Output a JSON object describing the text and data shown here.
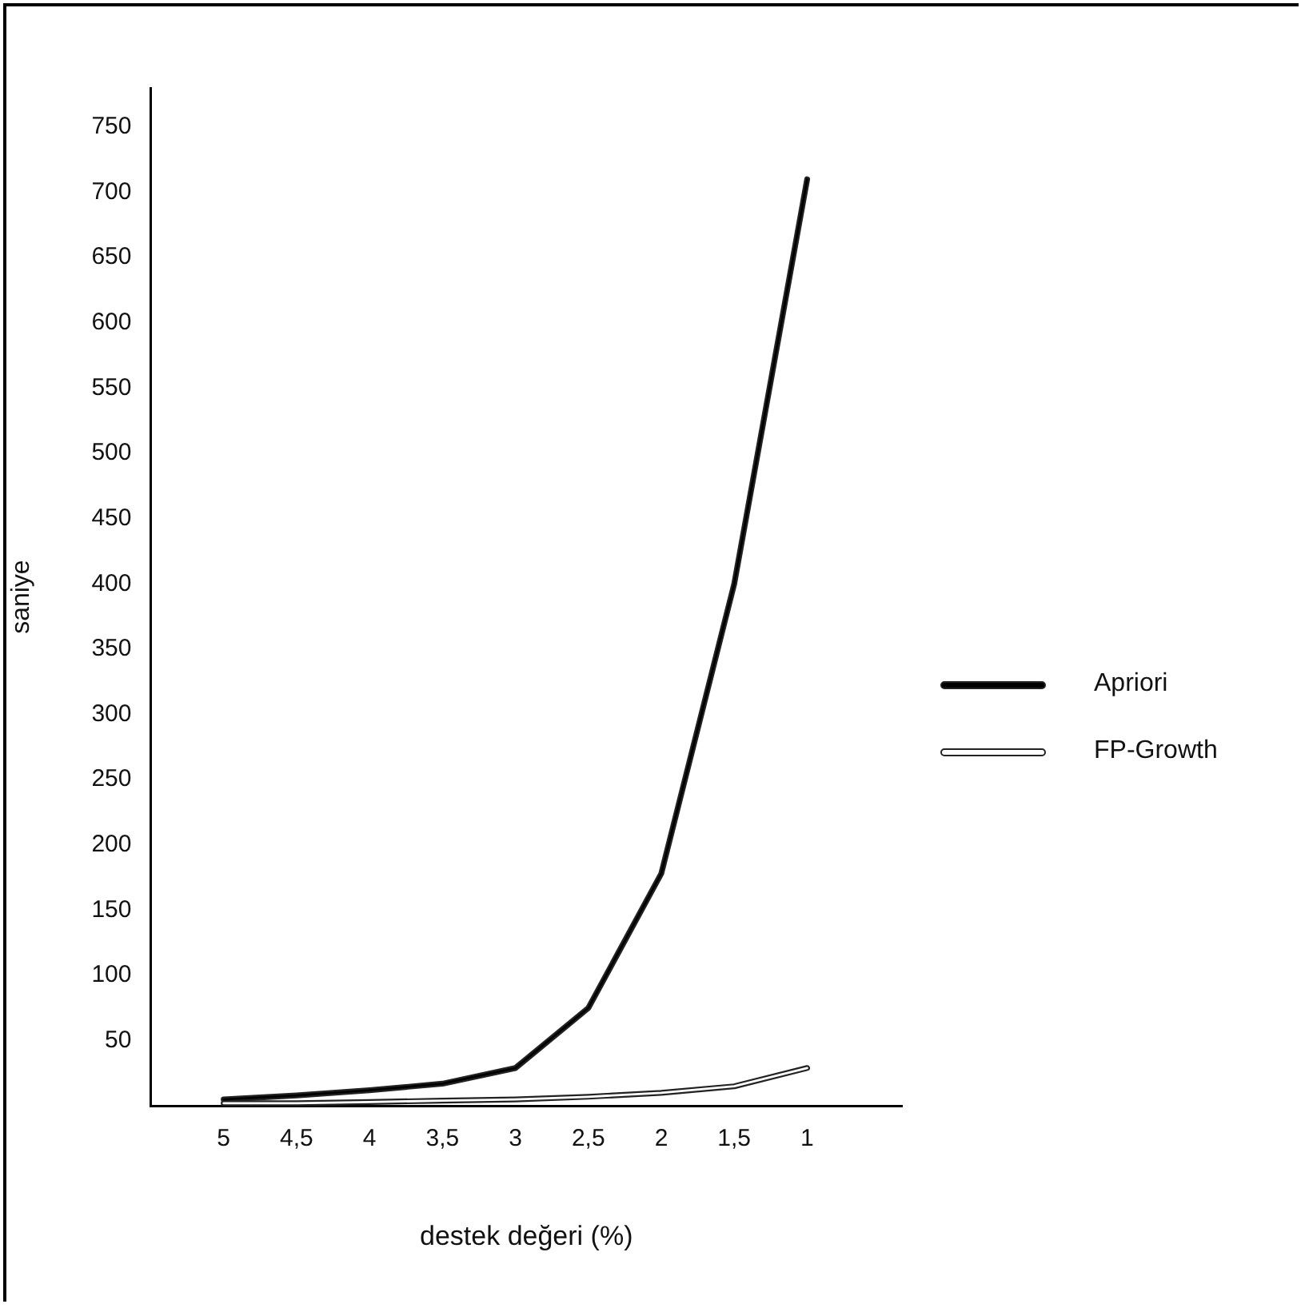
{
  "chart_data": {
    "type": "line",
    "xlabel": "destek değeri (%)",
    "ylabel": "saniye",
    "x": [
      5,
      4.5,
      4,
      3.5,
      3,
      2.5,
      2,
      1.5,
      1
    ],
    "xlim": [
      5.5,
      0.35
    ],
    "xticks": [
      5,
      {
        "value": 4.5,
        "label": "4,5"
      },
      4,
      {
        "value": 3.5,
        "label": "3,5"
      },
      3,
      {
        "value": 2.5,
        "label": "2,5"
      },
      2,
      {
        "value": 1.5,
        "label": "1,5"
      },
      1
    ],
    "ylim": [
      0,
      780
    ],
    "yticks": [
      50,
      100,
      150,
      200,
      250,
      300,
      350,
      400,
      450,
      500,
      550,
      600,
      650,
      700,
      750
    ],
    "series": [
      {
        "name": "Apriori",
        "color": "#000000",
        "values": [
          5,
          8,
          12,
          17,
          29,
          75,
          178,
          400,
          710
        ]
      },
      {
        "name": "FP-Growth",
        "color": "#ffffff",
        "values": [
          2,
          2,
          3,
          4,
          5,
          7,
          10,
          15,
          29
        ]
      }
    ],
    "grid": false,
    "legend": "right",
    "marker": "none"
  }
}
